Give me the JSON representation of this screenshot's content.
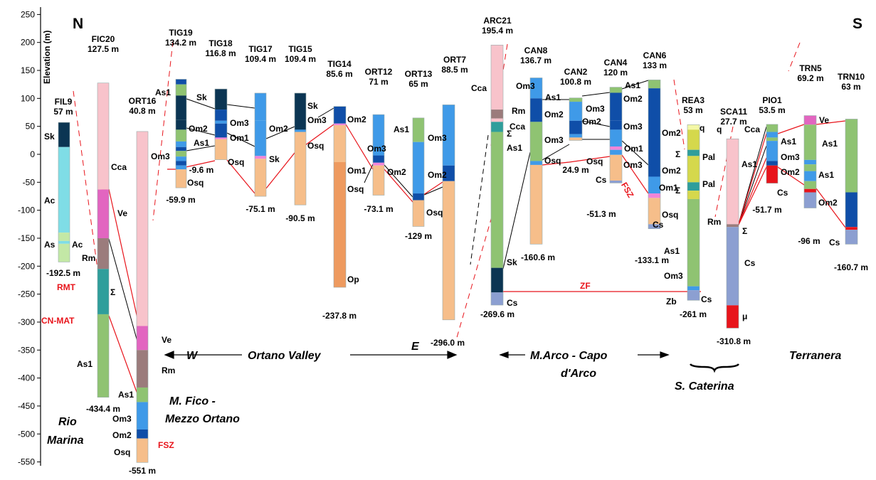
{
  "axis": {
    "label": "Elevation (m)",
    "ticks": [
      "250",
      "200",
      "150",
      "100",
      "50",
      "0",
      "-50",
      "-100",
      "-150",
      "-200",
      "-250",
      "-300",
      "-350",
      "-400",
      "-450",
      "-500",
      "-550"
    ]
  },
  "compass": {
    "north": "N",
    "south": "S"
  },
  "colors": {
    "Sk": "#0b3553",
    "Ac": "#7fdde6",
    "As": "#c3e8a6",
    "As1": "#8fc372",
    "Rm": "#9b7c7c",
    "Sigma": "#2f9e9b",
    "Ve": "#e265c0",
    "Cca": "#f8c3cb",
    "Om3": "#3f9ae8",
    "Om2": "#0f4ea8",
    "Om1": "#f285d8",
    "Osq": "#f6be8a",
    "Op": "#ee9a5f",
    "Cs": "#8c9fd1",
    "q": "#f3f7a6",
    "Pal": "#d5d84c",
    "mu": "#e8141b",
    "fault_line": "#e8141b"
  },
  "wells": [
    {
      "id": "FIL9",
      "top": "57 m",
      "bottom": "-192.5 m"
    },
    {
      "id": "FIC20",
      "top": "127.5 m",
      "bottom": "-434.4 m"
    },
    {
      "id": "ORT16",
      "top": "40.8 m",
      "bottom": "-551 m"
    },
    {
      "id": "TIG19",
      "top": "134.2 m",
      "bottom": "-59.9 m"
    },
    {
      "id": "TIG18",
      "top": "116.8 m",
      "bottom": "-9.6 m"
    },
    {
      "id": "TIG17",
      "top": "109.4 m",
      "bottom": "-75.1 m"
    },
    {
      "id": "TIG15",
      "top": "109.4 m",
      "bottom": "-90.5 m"
    },
    {
      "id": "TIG14",
      "top": "85.6 m",
      "bottom": "-237.8 m"
    },
    {
      "id": "ORT12",
      "top": "71 m",
      "bottom": "-73.1 m"
    },
    {
      "id": "ORT13",
      "top": "65 m",
      "bottom": "-129 m"
    },
    {
      "id": "ORT7",
      "top": "88.5 m",
      "bottom": "-296.0 m"
    },
    {
      "id": "ARC21",
      "top": "195.4 m",
      "bottom": "-269.6 m"
    },
    {
      "id": "CAN8",
      "top": "136.7 m",
      "bottom": "-160.6 m"
    },
    {
      "id": "CAN2",
      "top": "100.8 m",
      "bottom": "24.9 m"
    },
    {
      "id": "CAN4",
      "top": "120 m",
      "bottom": "-51.3 m"
    },
    {
      "id": "CAN6",
      "top": "133 m",
      "bottom": "-133.1 m"
    },
    {
      "id": "REA3",
      "top": "53 m",
      "bottom": "-261 m"
    },
    {
      "id": "SCA11",
      "top": "27.7 m",
      "bottom": "-310.8 m"
    },
    {
      "id": "PIO1",
      "top": "53.5 m",
      "bottom": "-51.7 m"
    },
    {
      "id": "TRN5",
      "top": "69.2 m",
      "bottom": "-96 m"
    },
    {
      "id": "TRN10",
      "top": "63 m",
      "bottom": "-160.7 m"
    }
  ],
  "units": {
    "Sk": "Sk",
    "Ac": "Ac",
    "As": "As",
    "As1": "As1",
    "Rm": "Rm",
    "Sigma": "Σ",
    "Ve": "Ve",
    "Cca": "Cca",
    "Om1": "Om1",
    "Om2": "Om2",
    "Om3": "Om3",
    "Osq": "Osq",
    "Op": "Op",
    "Cs": "Cs",
    "q": "q",
    "Pal": "Pal",
    "mu": "μ",
    "Zb": "Zb"
  },
  "faults": {
    "RMT": "RMT",
    "CNMAT": "CN-MAT",
    "FSZ": "FSZ",
    "ZF": "ZF"
  },
  "sections": {
    "W": "W",
    "E": "E",
    "ortano": "Ortano Valley",
    "arco1": "M.Arco - Capo",
    "arco2": "d'Arco",
    "caterina": "S. Caterina",
    "terranera": "Terranera",
    "rio1": "Rio",
    "rio2": "Marina",
    "fico1": "M. Fico -",
    "fico2": "Mezzo Ortano"
  }
}
